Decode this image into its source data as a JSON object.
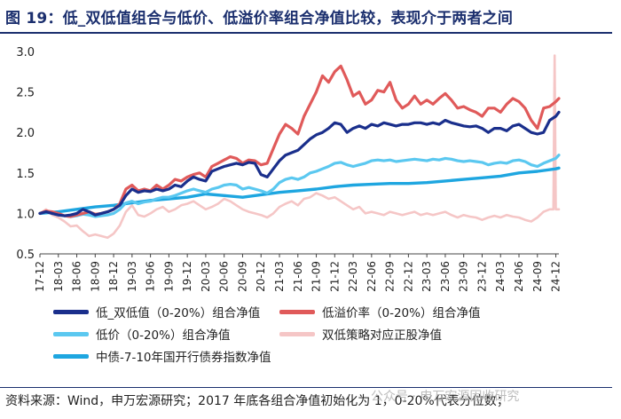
{
  "title": "图 19：低_双低值组合与低价、低溢价率组合净值比较，表现介于两者之间",
  "source": "资料来源：Wind，申万宏源研究；2017 年底各组合净值初始化为 1，0-20%代表分位数；",
  "watermark": "公众号 · 申万宏源固收研究",
  "chart_data": {
    "type": "line",
    "title": "",
    "xlabel": "",
    "ylabel": "",
    "ylim": [
      0.5,
      3.0
    ],
    "yticks": [
      "0.5",
      "1.0",
      "1.5",
      "2.0",
      "2.5",
      "3.0"
    ],
    "x_tick_labels": [
      "17-12",
      "18-03",
      "18-06",
      "18-09",
      "18-12",
      "19-03",
      "19-06",
      "19-09",
      "19-12",
      "20-03",
      "20-06",
      "20-09",
      "20-12",
      "21-03",
      "21-06",
      "21-09",
      "21-12",
      "22-03",
      "22-06",
      "22-09",
      "22-12",
      "23-03",
      "23-06",
      "23-09",
      "23-12",
      "24-03",
      "24-06",
      "24-09",
      "24-12"
    ],
    "x_months": [
      0,
      3,
      6,
      9,
      12,
      15,
      18,
      21,
      24,
      27,
      30,
      33,
      36,
      39,
      42,
      45,
      48,
      51,
      54,
      57,
      60,
      63,
      66,
      69,
      72,
      75,
      78,
      81,
      84
    ],
    "xlim_months": [
      0,
      84.5
    ],
    "grid": false,
    "legend_position": "bottom",
    "series": [
      {
        "name": "低_双低值（0-20%）组合净值",
        "color": "#1a2f8c",
        "width": 3.2,
        "x": [
          0,
          1,
          2,
          3,
          4,
          5,
          6,
          7,
          8,
          9,
          10,
          11,
          12,
          13,
          14,
          15,
          16,
          17,
          18,
          19,
          20,
          21,
          22,
          23,
          24,
          25,
          26,
          27,
          28,
          29,
          30,
          31,
          32,
          33,
          34,
          35,
          36,
          37,
          38,
          39,
          40,
          41,
          42,
          43,
          44,
          45,
          46,
          47,
          48,
          49,
          50,
          51,
          52,
          53,
          54,
          55,
          56,
          57,
          58,
          59,
          60,
          61,
          62,
          63,
          64,
          65,
          66,
          67,
          68,
          69,
          70,
          71,
          72,
          73,
          74,
          75,
          76,
          77,
          78,
          79,
          80,
          81,
          82,
          83,
          84,
          84.5
        ],
        "values": [
          1.0,
          1.02,
          1.0,
          0.98,
          0.97,
          0.98,
          1.0,
          1.05,
          1.02,
          0.98,
          1.0,
          1.02,
          1.05,
          1.1,
          1.22,
          1.3,
          1.26,
          1.28,
          1.27,
          1.3,
          1.28,
          1.3,
          1.35,
          1.33,
          1.4,
          1.45,
          1.42,
          1.4,
          1.52,
          1.55,
          1.58,
          1.6,
          1.62,
          1.6,
          1.63,
          1.62,
          1.48,
          1.45,
          1.55,
          1.65,
          1.72,
          1.75,
          1.78,
          1.85,
          1.92,
          1.97,
          2.0,
          2.05,
          2.12,
          2.1,
          2.0,
          2.05,
          2.08,
          2.05,
          2.1,
          2.08,
          2.12,
          2.1,
          2.08,
          2.1,
          2.1,
          2.12,
          2.12,
          2.1,
          2.12,
          2.1,
          2.15,
          2.12,
          2.1,
          2.08,
          2.07,
          2.08,
          2.05,
          2.0,
          2.05,
          2.05,
          2.02,
          2.08,
          2.1,
          2.05,
          2.0,
          1.98,
          2.0,
          2.15,
          2.2,
          2.25
        ]
      },
      {
        "name": "低溢价率（0-20%）组合净值",
        "color": "#e05a5a",
        "width": 3.2,
        "x": [
          0,
          1,
          2,
          3,
          4,
          5,
          6,
          7,
          8,
          9,
          10,
          11,
          12,
          13,
          14,
          15,
          16,
          17,
          18,
          19,
          20,
          21,
          22,
          23,
          24,
          25,
          26,
          27,
          28,
          29,
          30,
          31,
          32,
          33,
          34,
          35,
          36,
          37,
          38,
          39,
          40,
          41,
          42,
          43,
          44,
          45,
          46,
          47,
          48,
          49,
          50,
          51,
          52,
          53,
          54,
          55,
          56,
          57,
          58,
          59,
          60,
          61,
          62,
          63,
          64,
          65,
          66,
          67,
          68,
          69,
          70,
          71,
          72,
          73,
          74,
          75,
          76,
          77,
          78,
          79,
          80,
          81,
          82,
          83,
          84,
          84.5
        ],
        "values": [
          1.0,
          1.03,
          1.02,
          1.0,
          0.97,
          0.96,
          0.98,
          1.0,
          1.02,
          0.99,
          1.0,
          1.02,
          1.05,
          1.12,
          1.3,
          1.35,
          1.28,
          1.3,
          1.28,
          1.35,
          1.3,
          1.35,
          1.42,
          1.4,
          1.45,
          1.48,
          1.5,
          1.45,
          1.58,
          1.62,
          1.66,
          1.7,
          1.68,
          1.62,
          1.66,
          1.65,
          1.6,
          1.62,
          1.8,
          1.98,
          2.1,
          2.05,
          1.98,
          2.2,
          2.35,
          2.5,
          2.7,
          2.62,
          2.75,
          2.82,
          2.65,
          2.45,
          2.5,
          2.35,
          2.4,
          2.52,
          2.5,
          2.62,
          2.4,
          2.3,
          2.35,
          2.45,
          2.35,
          2.4,
          2.35,
          2.42,
          2.48,
          2.4,
          2.3,
          2.32,
          2.28,
          2.25,
          2.2,
          2.3,
          2.3,
          2.25,
          2.35,
          2.42,
          2.38,
          2.3,
          2.15,
          2.05,
          2.3,
          2.32,
          2.38,
          2.42
        ]
      },
      {
        "name": "低价（0-20%）组合净值",
        "color": "#5bc8f0",
        "width": 3.2,
        "x": [
          0,
          1,
          2,
          3,
          4,
          5,
          6,
          7,
          8,
          9,
          10,
          11,
          12,
          13,
          14,
          15,
          16,
          17,
          18,
          19,
          20,
          21,
          22,
          23,
          24,
          25,
          26,
          27,
          28,
          29,
          30,
          31,
          32,
          33,
          34,
          35,
          36,
          37,
          38,
          39,
          40,
          41,
          42,
          43,
          44,
          45,
          46,
          47,
          48,
          49,
          50,
          51,
          52,
          53,
          54,
          55,
          56,
          57,
          58,
          59,
          60,
          61,
          62,
          63,
          64,
          65,
          66,
          67,
          68,
          69,
          70,
          71,
          72,
          73,
          74,
          75,
          76,
          77,
          78,
          79,
          80,
          81,
          82,
          83,
          84,
          84.5
        ],
        "values": [
          1.0,
          1.02,
          1.0,
          0.98,
          0.97,
          0.96,
          0.97,
          0.99,
          0.98,
          0.96,
          0.97,
          0.98,
          1.0,
          1.05,
          1.13,
          1.15,
          1.12,
          1.14,
          1.15,
          1.18,
          1.2,
          1.2,
          1.22,
          1.25,
          1.28,
          1.3,
          1.28,
          1.26,
          1.3,
          1.32,
          1.35,
          1.36,
          1.35,
          1.3,
          1.32,
          1.3,
          1.28,
          1.25,
          1.3,
          1.38,
          1.42,
          1.44,
          1.42,
          1.45,
          1.5,
          1.52,
          1.55,
          1.58,
          1.62,
          1.63,
          1.6,
          1.58,
          1.6,
          1.62,
          1.65,
          1.66,
          1.65,
          1.66,
          1.64,
          1.65,
          1.66,
          1.67,
          1.66,
          1.65,
          1.67,
          1.66,
          1.68,
          1.67,
          1.65,
          1.64,
          1.65,
          1.64,
          1.63,
          1.6,
          1.62,
          1.63,
          1.62,
          1.65,
          1.66,
          1.64,
          1.6,
          1.58,
          1.62,
          1.65,
          1.68,
          1.72
        ]
      },
      {
        "name": "双低策略对应正股净值",
        "color": "#f5c6c6",
        "width": 2.6,
        "x": [
          0,
          1,
          2,
          3,
          4,
          5,
          6,
          7,
          8,
          9,
          10,
          11,
          12,
          13,
          14,
          15,
          16,
          17,
          18,
          19,
          20,
          21,
          22,
          23,
          24,
          25,
          26,
          27,
          28,
          29,
          30,
          31,
          32,
          33,
          34,
          35,
          36,
          37,
          38,
          39,
          40,
          41,
          42,
          43,
          44,
          45,
          46,
          47,
          48,
          49,
          50,
          51,
          52,
          53,
          54,
          55,
          56,
          57,
          58,
          59,
          60,
          61,
          62,
          63,
          64,
          65,
          66,
          67,
          68,
          69,
          70,
          71,
          72,
          73,
          74,
          75,
          76,
          77,
          78,
          79,
          80,
          81,
          82,
          83,
          83.6,
          83.8,
          84,
          84.5
        ],
        "values": [
          1.0,
          1.05,
          0.98,
          0.95,
          0.9,
          0.84,
          0.85,
          0.78,
          0.72,
          0.74,
          0.72,
          0.7,
          0.75,
          0.85,
          1.02,
          1.1,
          0.98,
          0.96,
          1.0,
          1.05,
          1.08,
          1.02,
          1.05,
          1.1,
          1.12,
          1.15,
          1.1,
          1.05,
          1.08,
          1.12,
          1.18,
          1.15,
          1.1,
          1.05,
          1.02,
          1.0,
          0.98,
          0.95,
          1.0,
          1.08,
          1.12,
          1.15,
          1.1,
          1.18,
          1.2,
          1.25,
          1.22,
          1.18,
          1.2,
          1.15,
          1.1,
          1.05,
          1.08,
          1.0,
          1.02,
          1.0,
          0.98,
          1.02,
          1.0,
          0.98,
          1.0,
          1.02,
          0.98,
          1.0,
          0.98,
          1.0,
          1.02,
          0.98,
          0.95,
          0.98,
          0.96,
          0.95,
          0.92,
          0.95,
          0.97,
          0.95,
          0.98,
          0.96,
          0.95,
          0.92,
          0.9,
          0.95,
          1.02,
          1.05,
          1.05,
          2.95,
          1.05,
          1.05
        ]
      },
      {
        "name": "中债-7-10年国开行债券指数净值",
        "color": "#1ea6e0",
        "width": 3.4,
        "x": [
          0,
          3,
          6,
          9,
          12,
          15,
          18,
          21,
          24,
          27,
          30,
          33,
          36,
          39,
          42,
          45,
          48,
          51,
          54,
          57,
          60,
          63,
          66,
          69,
          72,
          75,
          78,
          81,
          84,
          84.5
        ],
        "values": [
          1.0,
          1.02,
          1.05,
          1.08,
          1.1,
          1.13,
          1.16,
          1.18,
          1.2,
          1.24,
          1.22,
          1.2,
          1.23,
          1.26,
          1.28,
          1.3,
          1.33,
          1.35,
          1.36,
          1.37,
          1.37,
          1.38,
          1.4,
          1.42,
          1.44,
          1.46,
          1.5,
          1.52,
          1.55,
          1.56
        ]
      }
    ]
  },
  "legend": {
    "items": [
      {
        "label": "低_双低值（0-20%）组合净值",
        "color": "#1a2f8c"
      },
      {
        "label": "低溢价率（0-20%）组合净值",
        "color": "#e05a5a"
      },
      {
        "label": "低价（0-20%）组合净值",
        "color": "#5bc8f0"
      },
      {
        "label": "双低策略对应正股净值",
        "color": "#f5c6c6"
      },
      {
        "label": "中债-7-10年国开行债券指数净值",
        "color": "#1ea6e0"
      }
    ]
  }
}
